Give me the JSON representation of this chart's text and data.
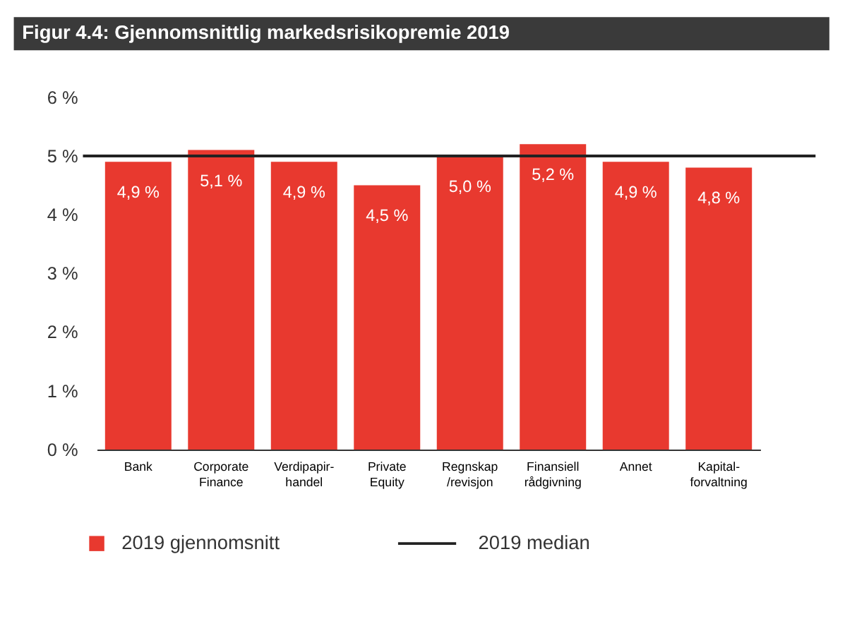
{
  "chart_data": {
    "type": "bar",
    "title": "Figur 4.4: Gjennomsnittlig markedsrisikopremie 2019",
    "categories": [
      "Bank",
      "Corporate\nFinance",
      "Verdipapir-\nhandel",
      "Private\nEquity",
      "Regnskap\n/revisjon",
      "Finansiell\nrådgivning",
      "Annet",
      "Kapital-\nforvaltning"
    ],
    "series": [
      {
        "name": "2019 gjennomsnitt",
        "color": "#e8392f",
        "values": [
          4.9,
          5.1,
          4.9,
          4.5,
          5.0,
          5.2,
          4.9,
          4.8
        ],
        "value_labels": [
          "4,9 %",
          "5,1 %",
          "4,9 %",
          "4,5 %",
          "5,0 %",
          "5,2 %",
          "4,9 %",
          "4,8 %"
        ]
      }
    ],
    "ref_lines": [
      {
        "axis": "y",
        "value": 5.0,
        "label": "2019 median",
        "color": "#222222",
        "line_style": "solid"
      }
    ],
    "ylim": [
      0,
      6
    ],
    "yticks": [
      {
        "value": 0,
        "label": "0 %"
      },
      {
        "value": 1,
        "label": "1 %"
      },
      {
        "value": 2,
        "label": "2 %"
      },
      {
        "value": 3,
        "label": "3 %"
      },
      {
        "value": 4,
        "label": "4 %"
      },
      {
        "value": 5,
        "label": "5 %"
      },
      {
        "value": 6,
        "label": "6 %"
      }
    ],
    "grid": false,
    "legend": "bottom"
  }
}
